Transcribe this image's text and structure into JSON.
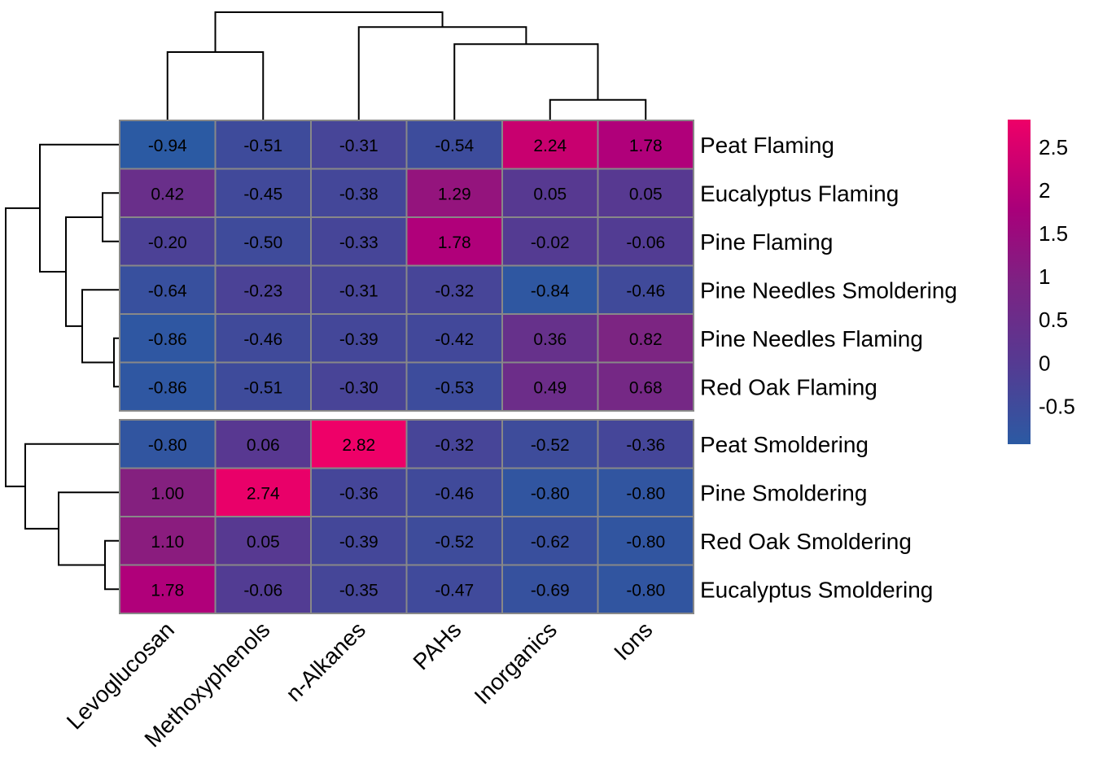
{
  "chart_data": {
    "type": "heatmap",
    "title": "",
    "columns": [
      "Levoglucosan",
      "Methoxyphenols",
      "n-Alkanes",
      "PAHs",
      "Inorganics",
      "Ions"
    ],
    "rows": [
      "Peat Flaming",
      "Eucalyptus Flaming",
      "Pine Flaming",
      "Pine Needles Smoldering",
      "Pine Needles Flaming",
      "Red Oak Flaming",
      "Peat Smoldering",
      "Pine Smoldering",
      "Red Oak Smoldering",
      "Eucalyptus Smoldering"
    ],
    "values": [
      [
        -0.94,
        -0.51,
        -0.31,
        -0.54,
        2.24,
        1.78
      ],
      [
        0.42,
        -0.45,
        -0.38,
        1.29,
        0.05,
        0.05
      ],
      [
        -0.2,
        -0.5,
        -0.33,
        1.78,
        -0.02,
        -0.06
      ],
      [
        -0.64,
        -0.23,
        -0.31,
        -0.32,
        -0.84,
        -0.46
      ],
      [
        -0.86,
        -0.46,
        -0.39,
        -0.42,
        0.36,
        0.82
      ],
      [
        -0.86,
        -0.51,
        -0.3,
        -0.53,
        0.49,
        0.68
      ],
      [
        -0.8,
        0.06,
        2.82,
        -0.32,
        -0.52,
        -0.36
      ],
      [
        1.0,
        2.74,
        -0.36,
        -0.46,
        -0.8,
        -0.8
      ],
      [
        1.1,
        0.05,
        -0.39,
        -0.52,
        -0.62,
        -0.8
      ],
      [
        1.78,
        -0.06,
        -0.35,
        -0.47,
        -0.69,
        -0.8
      ]
    ],
    "display_labels": [
      [
        "-0.94",
        "-0.51",
        "-0.31",
        "-0.54",
        "2.24",
        "1.78"
      ],
      [
        "0.42",
        "-0.45",
        "-0.38",
        "1.29",
        "0.05",
        "0.05"
      ],
      [
        "-0.20",
        "-0.50",
        "-0.33",
        "1.78",
        "-0.02",
        "-0.06"
      ],
      [
        "-0.64",
        "-0.23",
        "-0.31",
        "-0.32",
        "-0.84",
        "-0.46"
      ],
      [
        "-0.86",
        "-0.46",
        "-0.39",
        "-0.42",
        "0.36",
        "0.82"
      ],
      [
        "-0.86",
        "-0.51",
        "-0.30",
        "-0.53",
        "0.49",
        "0.68"
      ],
      [
        "-0.80",
        "0.06",
        "2.82",
        "-0.32",
        "-0.52",
        "-0.36"
      ],
      [
        "1.00",
        "2.74",
        "-0.36",
        "-0.46",
        "-0.80",
        "-0.80"
      ],
      [
        "1.10",
        "0.05",
        "-0.39",
        "-0.52",
        "-0.62",
        "-0.80"
      ],
      [
        "1.78",
        "-0.06",
        "-0.35",
        "-0.47",
        "-0.69",
        "-0.80"
      ]
    ],
    "row_groups": [
      {
        "name": "cluster-1",
        "row_count": 6
      },
      {
        "name": "cluster-2",
        "row_count": 4
      }
    ],
    "color_scale": {
      "min": -0.94,
      "max": 2.82,
      "low_color": "#2b5aa3",
      "mid_color": "#7b2185",
      "high_color": "#ee0068",
      "stops": [
        {
          "value": -0.94,
          "color": "#2b5aa3"
        },
        {
          "value": 0.0,
          "color": "#553a92"
        },
        {
          "value": 1.0,
          "color": "#84207f"
        },
        {
          "value": 1.78,
          "color": "#b0007a"
        },
        {
          "value": 2.24,
          "color": "#c8006f"
        },
        {
          "value": 2.82,
          "color": "#ee0068"
        }
      ]
    },
    "legend": {
      "position": "right",
      "ticks": [
        "2.5",
        "2",
        "1.5",
        "1",
        "0.5",
        "0",
        "-0.5"
      ],
      "tick_values": [
        2.5,
        2,
        1.5,
        1,
        0.5,
        0,
        -0.5
      ]
    },
    "column_dendrogram": {
      "description": "((Levoglucosan, Methoxyphenols), (n-Alkanes, (PAHs, (Inorganics, Ions))))",
      "merge_heights": {
        "Inorganics+Ions": 0.18,
        "PAHs+(Inorganics,Ions)": 0.78,
        "n-Alkanes+(...)": 0.88,
        "Levoglucosan+Methoxyphenols": 0.6,
        "root": 1.0
      }
    },
    "row_dendrogram": {
      "description": "((Peat Flaming, ((Eucalyptus Flaming, Pine Flaming), (Pine Needles Smoldering, (Pine Needles Flaming, Red Oak Flaming)))), (Peat Smoldering, (Pine Smoldering, (Red Oak Smoldering, Eucalyptus Smoldering))))"
    },
    "cell_border_color": "#888888",
    "grid": true
  }
}
